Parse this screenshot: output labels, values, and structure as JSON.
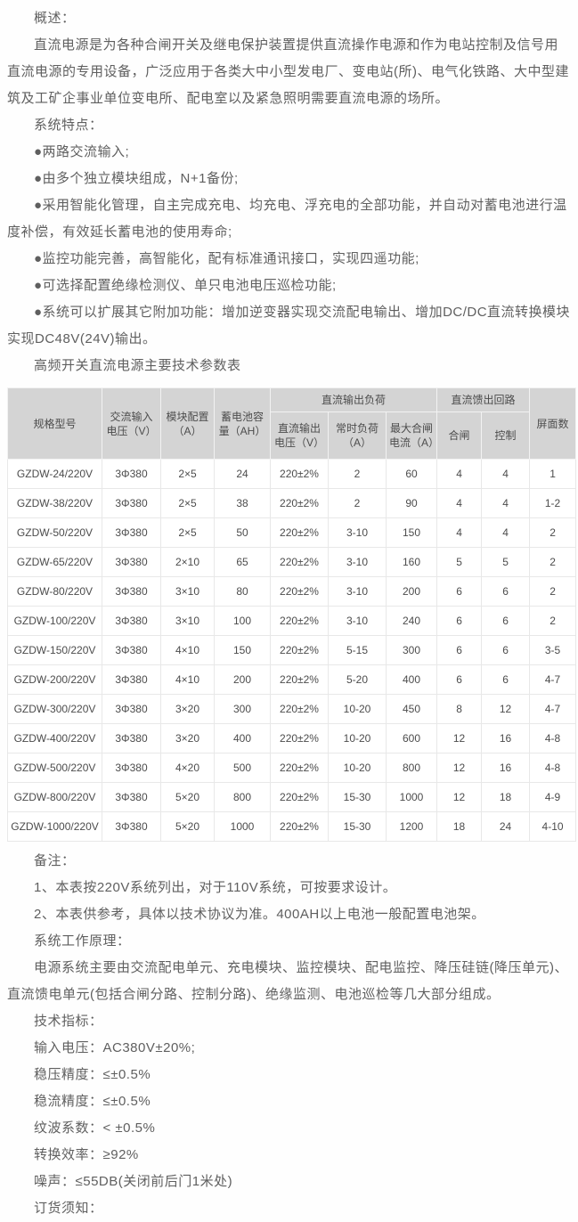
{
  "colors": {
    "body_text": "#5f5f5f",
    "table_text": "#4c4c4c",
    "table_header_bg": "#d4d4d4",
    "table_cell_border": "#e8e8e8",
    "page_background": "#fefefe"
  },
  "content": {
    "top_blocks": [
      {
        "type": "heading",
        "text": "概述："
      },
      {
        "type": "paragraph",
        "text": "直流电源是为各种合闸开关及继电保护装置提供直流操作电源和作为电站控制及信号用直流电源的专用设备，广泛应用于各类大中小型发电厂、变电站(所)、电气化铁路、大中型建筑及工矿企事业单位变电所、配电室以及紧急照明需要直流电源的场所。"
      },
      {
        "type": "heading",
        "text": "系统特点："
      },
      {
        "type": "bullet",
        "text": "●两路交流输入;"
      },
      {
        "type": "bullet",
        "text": "●由多个独立模块组成，N+1备份;"
      },
      {
        "type": "bullet",
        "text": "●采用智能化管理，自主完成充电、均充电、浮充电的全部功能，并自动对蓄电池进行温度补偿，有效延长蓄电池的使用寿命;"
      },
      {
        "type": "bullet",
        "text": "●监控功能完善，高智能化，配有标准通讯接口，实现四遥功能;"
      },
      {
        "type": "bullet",
        "text": "●可选择配置绝缘检测仪、单只电池电压巡检功能;"
      },
      {
        "type": "bullet",
        "text": "●系统可以扩展其它附加功能：增加逆变器实现交流配电输出、增加DC/DC直流转换模块实现DC48V(24V)输出。"
      },
      {
        "type": "table-title",
        "text": "高频开关直流电源主要技术参数表"
      }
    ],
    "bottom_blocks": [
      {
        "type": "heading",
        "text": "备注："
      },
      {
        "type": "line",
        "text": "1、本表按220V系统列出，对于110V系统，可按要求设计。"
      },
      {
        "type": "line",
        "text": "2、本表供参考，具体以技术协议为准。400AH以上电池一般配置电池架。"
      },
      {
        "type": "heading",
        "text": "系统工作原理："
      },
      {
        "type": "paragraph",
        "text": "电源系统主要由交流配电单元、充电模块、监控模块、配电监控、降压硅链(降压单元)、直流馈电单元(包括合闸分路、控制分路)、绝缘监测、电池巡检等几大部分组成。"
      },
      {
        "type": "heading",
        "text": "技术指标："
      },
      {
        "type": "line",
        "text": "输入电压：AC380V±20%;"
      },
      {
        "type": "line",
        "text": "稳压精度：≤±0.5%"
      },
      {
        "type": "line",
        "text": "稳流精度：≤±0.5%"
      },
      {
        "type": "line",
        "text": "纹波系数：< ±0.5%"
      },
      {
        "type": "line",
        "text": "转换效率：≥92%"
      },
      {
        "type": "line",
        "text": "噪声：≤55DB(关闭前后门1米处)"
      },
      {
        "type": "heading",
        "text": "订货须知："
      }
    ]
  },
  "table": {
    "header": {
      "model": "规格型号",
      "ac_input_voltage": "交流输入电压（V）",
      "module_config": "模块配置（A）",
      "battery_capacity": "蓄电池容量（AH）",
      "group_dc_output_load": "直流输出负荷",
      "group_dc_feed_circuit": "直流馈出回路",
      "dc_output_voltage": "直流输出电压（V）",
      "normal_load": "常时负荷（A）",
      "max_closing_current": "最大合闸电流（A）",
      "closing": "合闸",
      "control": "控制",
      "screen_count": "屏面数"
    },
    "rows": [
      [
        "GZDW-24/220V",
        "3Φ380",
        "2×5",
        "24",
        "220±2%",
        "2",
        "60",
        "4",
        "4",
        "1"
      ],
      [
        "GZDW-38/220V",
        "3Φ380",
        "2×5",
        "38",
        "220±2%",
        "2",
        "90",
        "4",
        "4",
        "1-2"
      ],
      [
        "GZDW-50/220V",
        "3Φ380",
        "2×5",
        "50",
        "220±2%",
        "3-10",
        "150",
        "4",
        "4",
        "2"
      ],
      [
        "GZDW-65/220V",
        "3Φ380",
        "2×10",
        "65",
        "220±2%",
        "3-10",
        "160",
        "5",
        "5",
        "2"
      ],
      [
        "GZDW-80/220V",
        "3Φ380",
        "3×10",
        "80",
        "220±2%",
        "3-10",
        "200",
        "6",
        "6",
        "2"
      ],
      [
        "GZDW-100/220V",
        "3Φ380",
        "3×10",
        "100",
        "220±2%",
        "3-10",
        "240",
        "6",
        "6",
        "2"
      ],
      [
        "GZDW-150/220V",
        "3Φ380",
        "4×10",
        "150",
        "220±2%",
        "5-15",
        "300",
        "6",
        "6",
        "3-5"
      ],
      [
        "GZDW-200/220V",
        "3Φ380",
        "4×10",
        "200",
        "220±2%",
        "5-20",
        "400",
        "6",
        "6",
        "4-7"
      ],
      [
        "GZDW-300/220V",
        "3Φ380",
        "3×20",
        "300",
        "220±2%",
        "10-20",
        "450",
        "8",
        "12",
        "4-7"
      ],
      [
        "GZDW-400/220V",
        "3Φ380",
        "3×20",
        "400",
        "220±2%",
        "10-20",
        "600",
        "12",
        "16",
        "4-8"
      ],
      [
        "GZDW-500/220V",
        "3Φ380",
        "4×20",
        "500",
        "220±2%",
        "10-20",
        "800",
        "12",
        "16",
        "4-8"
      ],
      [
        "GZDW-800/220V",
        "3Φ380",
        "5×20",
        "800",
        "220±2%",
        "15-30",
        "1000",
        "12",
        "18",
        "4-9"
      ],
      [
        "GZDW-1000/220V",
        "3Φ380",
        "5×20",
        "1000",
        "220±2%",
        "15-30",
        "1200",
        "18",
        "24",
        "4-10"
      ]
    ]
  }
}
